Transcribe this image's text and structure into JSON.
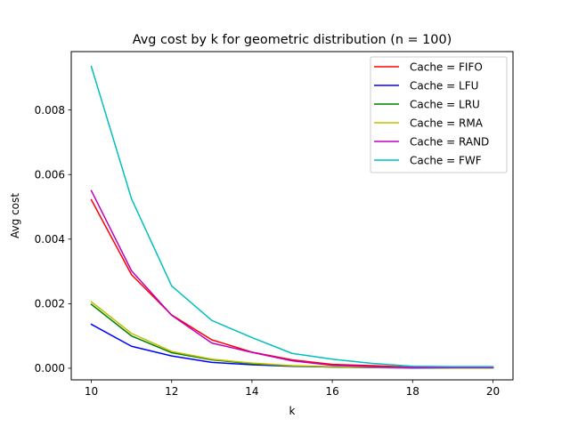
{
  "chart_data": {
    "type": "line",
    "title": "Avg cost by k for geometric distribution (n = 100)",
    "xlabel": "k",
    "ylabel": "Avg cost",
    "x": [
      10,
      11,
      12,
      13,
      14,
      15,
      16,
      17,
      18,
      19,
      20
    ],
    "xlim": [
      9.5,
      20.5
    ],
    "ylim": [
      -0.00036,
      0.00981
    ],
    "xticks": [
      10,
      12,
      14,
      16,
      18,
      20
    ],
    "xtick_labels": [
      "10",
      "12",
      "14",
      "16",
      "18",
      "20"
    ],
    "yticks": [
      0.0,
      0.002,
      0.004,
      0.006,
      0.008
    ],
    "ytick_labels": [
      "0.000",
      "0.002",
      "0.004",
      "0.006",
      "0.008"
    ],
    "grid": false,
    "legend_position": "top-right",
    "series": [
      {
        "name": "Cache = FIFO",
        "color": "#ff0000",
        "values": [
          0.00522,
          0.0029,
          0.00165,
          0.00088,
          0.0005,
          0.00026,
          0.00012,
          8e-05,
          3e-05,
          2e-05,
          2e-05
        ]
      },
      {
        "name": "Cache = LFU",
        "color": "#0000ff",
        "values": [
          0.00136,
          0.00068,
          0.00038,
          0.00018,
          0.00011,
          6e-05,
          4e-05,
          2e-05,
          1e-05,
          1e-05,
          1e-05
        ]
      },
      {
        "name": "Cache = LRU",
        "color": "#008000",
        "values": [
          0.00198,
          0.001,
          0.00048,
          0.00026,
          0.00014,
          7e-05,
          4e-05,
          3e-05,
          2e-05,
          1e-05,
          1e-05
        ]
      },
      {
        "name": "Cache = RMA",
        "color": "#bfbf00",
        "values": [
          0.00206,
          0.00108,
          0.00052,
          0.00028,
          0.00016,
          8e-05,
          5e-05,
          3e-05,
          2e-05,
          1e-05,
          1e-05
        ]
      },
      {
        "name": "Cache = RAND",
        "color": "#bf00bf",
        "values": [
          0.0055,
          0.00302,
          0.00164,
          0.00078,
          0.00049,
          0.00023,
          9e-05,
          5e-05,
          2e-05,
          2e-05,
          2e-05
        ]
      },
      {
        "name": "Cache = FWF",
        "color": "#00bfbf",
        "values": [
          0.00935,
          0.00525,
          0.00255,
          0.00148,
          0.00095,
          0.00046,
          0.00028,
          0.00015,
          6e-05,
          5e-05,
          5e-05
        ]
      }
    ]
  }
}
